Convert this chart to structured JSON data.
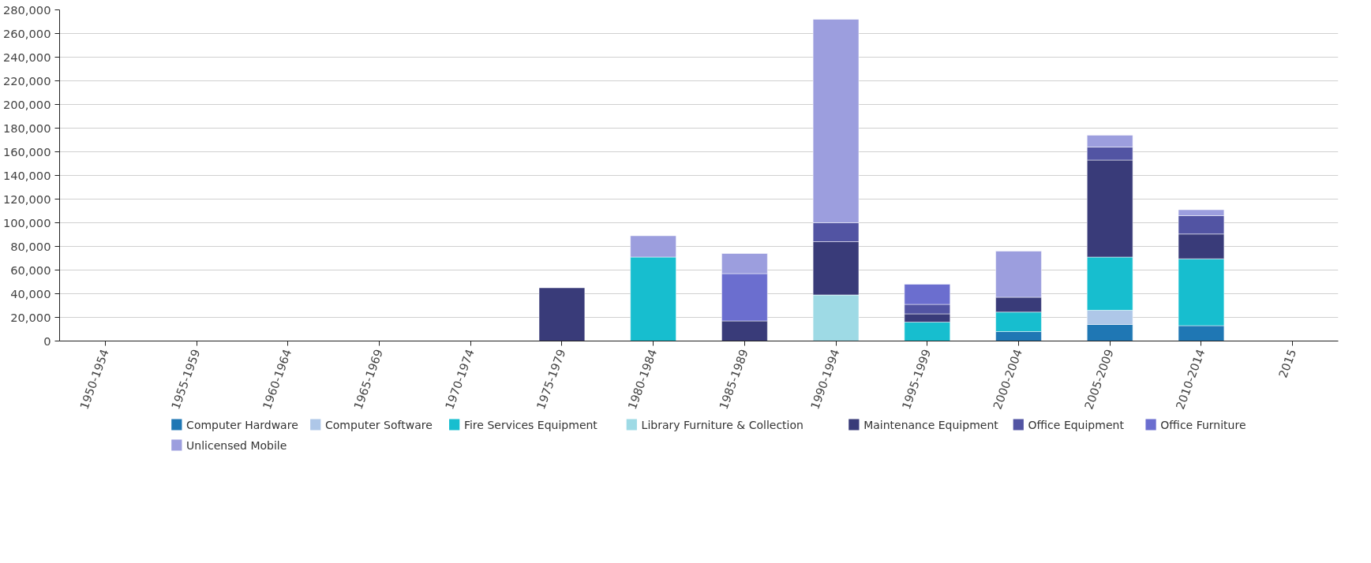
{
  "chart_data": {
    "type": "bar",
    "stacked": true,
    "categories": [
      "1950-1954",
      "1955-1959",
      "1960-1964",
      "1965-1969",
      "1970-1974",
      "1975-1979",
      "1980-1984",
      "1985-1989",
      "1990-1994",
      "1995-1999",
      "2000-2004",
      "2005-2009",
      "2010-2014",
      "2015"
    ],
    "series": [
      {
        "name": "Computer Hardware",
        "color": "#1f77b4",
        "values": [
          null,
          null,
          null,
          null,
          null,
          null,
          null,
          null,
          null,
          null,
          8000,
          14000,
          13000,
          null
        ]
      },
      {
        "name": "Computer Software",
        "color": "#aec7e8",
        "values": [
          null,
          null,
          null,
          null,
          null,
          null,
          null,
          null,
          null,
          null,
          null,
          12000,
          null,
          null
        ]
      },
      {
        "name": "Fire Services Equipment",
        "color": "#17becf",
        "values": [
          null,
          null,
          null,
          null,
          null,
          null,
          71000,
          null,
          null,
          16000,
          16500,
          45000,
          56500,
          null
        ]
      },
      {
        "name": "Library Furniture & Collection",
        "color": "#9edae5",
        "values": [
          null,
          null,
          null,
          null,
          null,
          null,
          null,
          null,
          39000,
          null,
          null,
          null,
          null,
          null
        ]
      },
      {
        "name": "Maintenance Equipment",
        "color": "#393b79",
        "values": [
          null,
          null,
          null,
          null,
          null,
          45000,
          null,
          17000,
          45000,
          7000,
          12500,
          82000,
          21000,
          null
        ]
      },
      {
        "name": "Office Equipment",
        "color": "#5254a3",
        "values": [
          null,
          null,
          null,
          null,
          null,
          null,
          null,
          null,
          16000,
          8000,
          null,
          11000,
          15500,
          null
        ]
      },
      {
        "name": "Office Furniture",
        "color": "#6b6ecf",
        "values": [
          null,
          null,
          null,
          null,
          null,
          null,
          null,
          40000,
          null,
          17000,
          null,
          null,
          null,
          null
        ]
      },
      {
        "name": "Unlicensed Mobile",
        "color": "#9c9ede",
        "values": [
          null,
          null,
          null,
          null,
          null,
          null,
          18000,
          17000,
          172000,
          null,
          39000,
          10000,
          5000,
          null
        ]
      }
    ],
    "ylim": [
      0,
      280000
    ],
    "yticks": [
      {
        "value": 0,
        "label": "0"
      },
      {
        "value": 20000,
        "label": "20,000"
      },
      {
        "value": 40000,
        "label": "40,000"
      },
      {
        "value": 60000,
        "label": "60,000"
      },
      {
        "value": 80000,
        "label": "80,000"
      },
      {
        "value": 100000,
        "label": "100,000"
      },
      {
        "value": 120000,
        "label": "120,000"
      },
      {
        "value": 140000,
        "label": "140,000"
      },
      {
        "value": 160000,
        "label": "160,000"
      },
      {
        "value": 180000,
        "label": "180,000"
      },
      {
        "value": 200000,
        "label": "200,000"
      },
      {
        "value": 220000,
        "label": "220,000"
      },
      {
        "value": 240000,
        "label": "240,000"
      },
      {
        "value": 260000,
        "label": "260,000"
      },
      {
        "value": 280000,
        "label": "280,000"
      }
    ],
    "grid": "y",
    "legend": "bottom"
  }
}
